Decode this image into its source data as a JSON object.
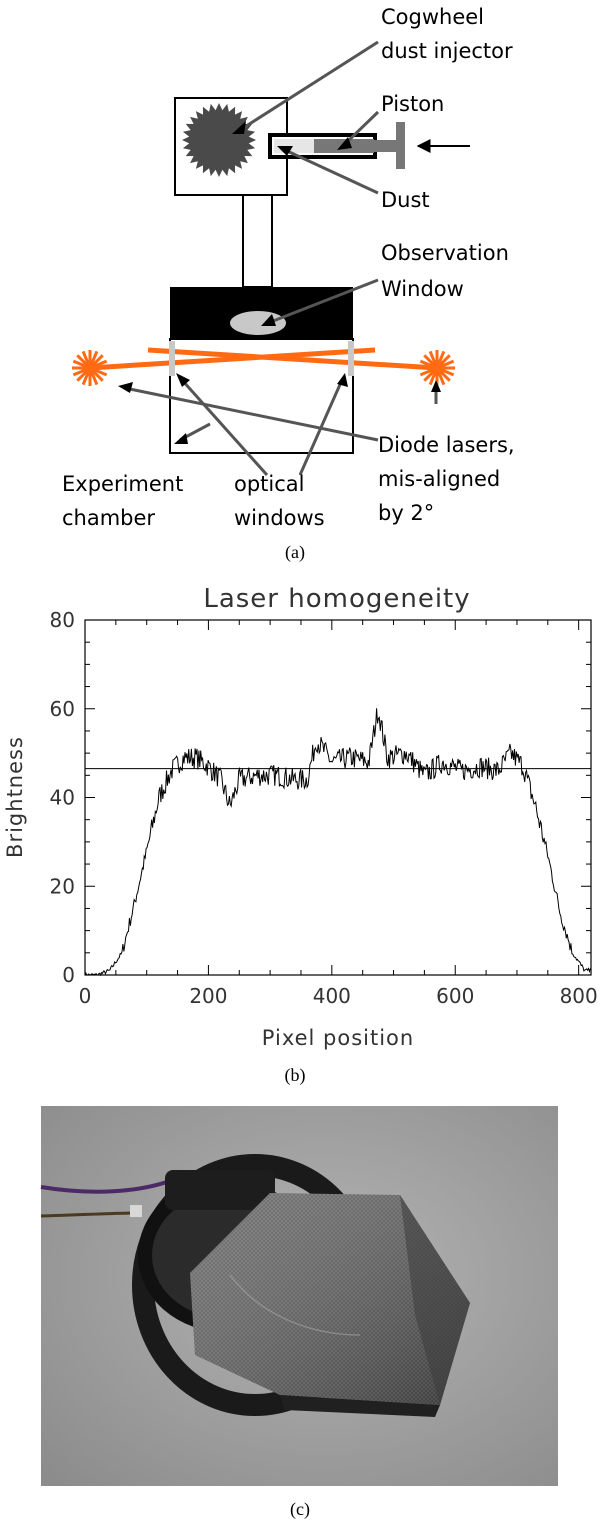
{
  "diagram": {
    "labels": {
      "cogwheel_line1": "Cogwheel",
      "cogwheel_line2": "dust injector",
      "piston": "Piston",
      "dust": "Dust",
      "observation_line1": "Observation",
      "observation_line2": "Window",
      "diode_line1": "Diode lasers,",
      "diode_line2": "mis-aligned",
      "diode_line3": "by 2°",
      "experiment_line1": "Experiment",
      "experiment_line2": "chamber",
      "optical_line1": "optical",
      "optical_line2": "windows"
    },
    "caption_a": "(a)",
    "laser_color": "#ff6a13"
  },
  "chart_data": {
    "type": "line",
    "title": "Laser homogeneity",
    "xlabel": "Pixel position",
    "ylabel": "Brightness",
    "xlim": [
      0,
      820
    ],
    "ylim": [
      0,
      80
    ],
    "xticks": [
      "0",
      "200",
      "400",
      "600",
      "800"
    ],
    "yticks": [
      "0",
      "20",
      "40",
      "60",
      "80"
    ],
    "mean_line": 46.5,
    "profile": {
      "x": [
        0,
        20,
        40,
        60,
        80,
        100,
        120,
        140,
        160,
        180,
        200,
        220,
        235,
        250,
        280,
        310,
        340,
        360,
        375,
        400,
        430,
        460,
        475,
        490,
        520,
        550,
        580,
        610,
        640,
        670,
        690,
        710,
        730,
        750,
        770,
        790,
        810,
        820
      ],
      "y": [
        0,
        0,
        1,
        5,
        16,
        28,
        40,
        46,
        49,
        49,
        47,
        44,
        38,
        44,
        45,
        45,
        44,
        44,
        53,
        48,
        49,
        48,
        60,
        49,
        50,
        45,
        48,
        46,
        47,
        46,
        50,
        47,
        38,
        27,
        14,
        5,
        1,
        1
      ]
    }
  },
  "caption_b": "(b)",
  "photo": {
    "caption_c": "(c)"
  }
}
